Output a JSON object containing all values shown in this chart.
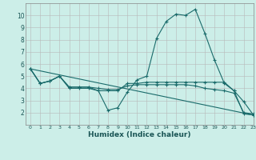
{
  "bg_color": "#cceee8",
  "grid_color": "#b8b8b8",
  "line_color": "#1a6b6b",
  "xlabel": "Humidex (Indice chaleur)",
  "xlim": [
    -0.5,
    23
  ],
  "ylim": [
    1,
    11
  ],
  "xticks": [
    0,
    1,
    2,
    3,
    4,
    5,
    6,
    7,
    8,
    9,
    10,
    11,
    12,
    13,
    14,
    15,
    16,
    17,
    18,
    19,
    20,
    21,
    22,
    23
  ],
  "yticks": [
    2,
    3,
    4,
    5,
    6,
    7,
    8,
    9,
    10
  ],
  "series": [
    {
      "x": [
        0,
        1,
        2,
        3,
        4,
        5,
        6,
        7,
        8,
        9,
        10,
        11,
        12,
        13,
        14,
        15,
        16,
        17,
        18,
        19,
        20,
        21,
        22,
        23
      ],
      "y": [
        5.6,
        4.4,
        4.6,
        5.0,
        4.0,
        4.0,
        4.0,
        3.8,
        2.2,
        2.4,
        3.7,
        4.7,
        5.0,
        8.1,
        9.5,
        10.1,
        10.0,
        10.5,
        8.5,
        6.3,
        4.4,
        3.8,
        2.9,
        1.8
      ],
      "markers": true
    },
    {
      "x": [
        0,
        1,
        2,
        3,
        4,
        5,
        6,
        7,
        8,
        9,
        10,
        11,
        12,
        13,
        14,
        15,
        16,
        17,
        18,
        19,
        20,
        21,
        22,
        23
      ],
      "y": [
        5.6,
        4.4,
        4.6,
        5.0,
        4.1,
        4.1,
        4.1,
        3.8,
        3.8,
        3.8,
        4.4,
        4.4,
        4.5,
        4.5,
        4.5,
        4.5,
        4.5,
        4.5,
        4.5,
        4.5,
        4.5,
        3.8,
        1.9,
        1.8
      ],
      "markers": true
    },
    {
      "x": [
        0,
        1,
        2,
        3,
        4,
        5,
        6,
        7,
        8,
        9,
        10,
        11,
        12,
        13,
        14,
        15,
        16,
        17,
        18,
        19,
        20,
        21,
        22,
        23
      ],
      "y": [
        5.6,
        4.4,
        4.6,
        5.0,
        4.1,
        4.1,
        4.1,
        4.0,
        3.9,
        3.9,
        4.2,
        4.3,
        4.3,
        4.3,
        4.3,
        4.3,
        4.3,
        4.2,
        4.0,
        3.9,
        3.8,
        3.6,
        2.0,
        1.9
      ],
      "markers": true
    },
    {
      "x": [
        0,
        23
      ],
      "y": [
        5.6,
        1.8
      ],
      "markers": false
    }
  ]
}
